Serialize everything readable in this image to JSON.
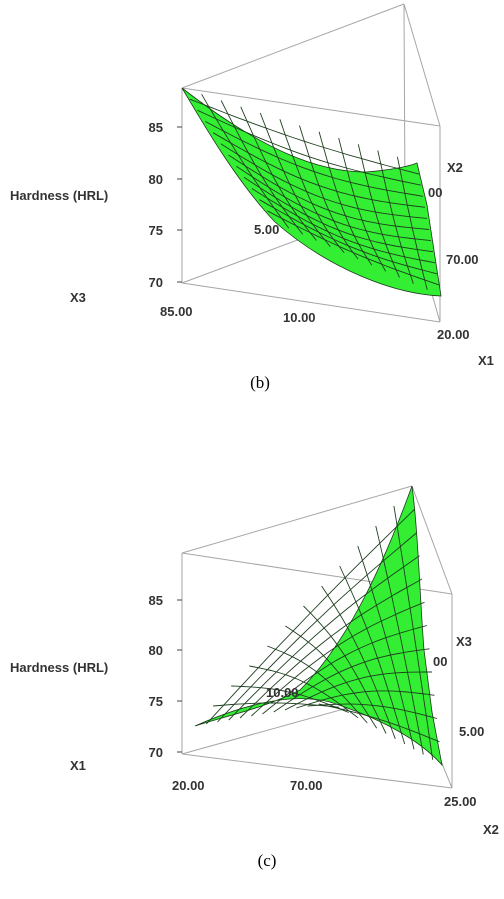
{
  "chart_data": [
    {
      "panel_label": "(b)",
      "type": "surface",
      "zlabel": "Hardness (HRL)",
      "z_ticks": [
        "85",
        "80",
        "75",
        "70"
      ],
      "zlim": [
        70,
        85
      ],
      "corner_labels": [
        "X3",
        "X1",
        "X2"
      ],
      "edge_tick_labels": [
        "85.00",
        "10.00",
        "20.00",
        "5.00",
        "70.00",
        "00"
      ],
      "surface_color": "#33ee33"
    },
    {
      "panel_label": "(c)",
      "type": "surface",
      "zlabel": "Hardness (HRL)",
      "z_ticks": [
        "85",
        "80",
        "75",
        "70"
      ],
      "zlim": [
        70,
        85
      ],
      "corner_labels": [
        "X1",
        "X2",
        "X3"
      ],
      "edge_tick_labels": [
        "20.00",
        "70.00",
        "25.00",
        "10.00",
        "5.00",
        "00"
      ],
      "surface_color": "#33ee33"
    }
  ]
}
